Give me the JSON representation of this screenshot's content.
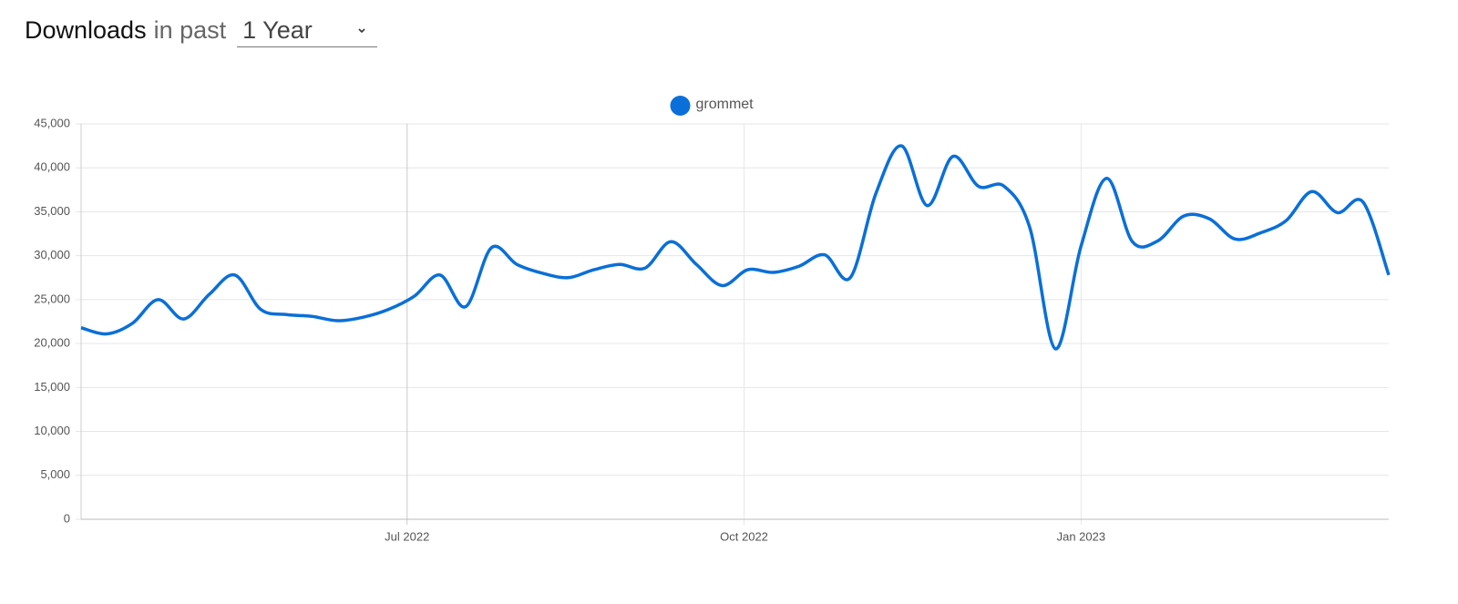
{
  "header": {
    "title": "Downloads",
    "subtitle": "in past",
    "period": "1 Year"
  },
  "chart_data": {
    "type": "line",
    "x": [
      "2022-04-03",
      "2022-04-10",
      "2022-04-17",
      "2022-04-24",
      "2022-05-01",
      "2022-05-08",
      "2022-05-15",
      "2022-05-22",
      "2022-05-29",
      "2022-06-05",
      "2022-06-12",
      "2022-06-19",
      "2022-06-26",
      "2022-07-03",
      "2022-07-10",
      "2022-07-17",
      "2022-07-24",
      "2022-07-31",
      "2022-08-07",
      "2022-08-14",
      "2022-08-21",
      "2022-08-28",
      "2022-09-04",
      "2022-09-11",
      "2022-09-18",
      "2022-09-25",
      "2022-10-02",
      "2022-10-09",
      "2022-10-16",
      "2022-10-23",
      "2022-10-30",
      "2022-11-06",
      "2022-11-13",
      "2022-11-20",
      "2022-11-27",
      "2022-12-04",
      "2022-12-11",
      "2022-12-18",
      "2022-12-25",
      "2023-01-01",
      "2023-01-08",
      "2023-01-15",
      "2023-01-22",
      "2023-01-29",
      "2023-02-05",
      "2023-02-12",
      "2023-02-19",
      "2023-02-26",
      "2023-03-05",
      "2023-03-12",
      "2023-03-19",
      "2023-03-26"
    ],
    "series": [
      {
        "name": "grommet",
        "color": "#0a6fd8",
        "values": [
          21800,
          21100,
          22300,
          25000,
          22800,
          25600,
          27800,
          23900,
          23300,
          23100,
          22600,
          23000,
          23900,
          25400,
          27800,
          24200,
          30900,
          29000,
          28000,
          27500,
          28400,
          29000,
          28600,
          31600,
          29000,
          26600,
          28400,
          28100,
          28800,
          30100,
          27500,
          37100,
          42500,
          35700,
          41300,
          37900,
          37900,
          33200,
          19400,
          31100,
          38800,
          31600,
          31700,
          34500,
          34200,
          31900,
          32600,
          34000,
          37300,
          34900,
          36100,
          27800
        ]
      }
    ],
    "xlim": [
      "2022-04-03",
      "2023-03-26"
    ],
    "xticks": [
      {
        "value": "2022-07-01",
        "label": "Jul 2022"
      },
      {
        "value": "2022-10-01",
        "label": "Oct 2022"
      },
      {
        "value": "2023-01-01",
        "label": "Jan 2023"
      }
    ],
    "ylim": [
      0,
      45000
    ],
    "yticks": [
      0,
      {
        "value": 5000,
        "label": "5,000"
      },
      {
        "value": 10000,
        "label": "10,000"
      },
      {
        "value": 15000,
        "label": "15,000"
      },
      {
        "value": 20000,
        "label": "20,000"
      },
      {
        "value": 25000,
        "label": "25,000"
      },
      {
        "value": 30000,
        "label": "30,000"
      },
      {
        "value": 35000,
        "label": "35,000"
      },
      {
        "value": 40000,
        "label": "40,000"
      },
      {
        "value": 45000,
        "label": "45,000"
      }
    ],
    "grid": true,
    "legend": "top"
  }
}
